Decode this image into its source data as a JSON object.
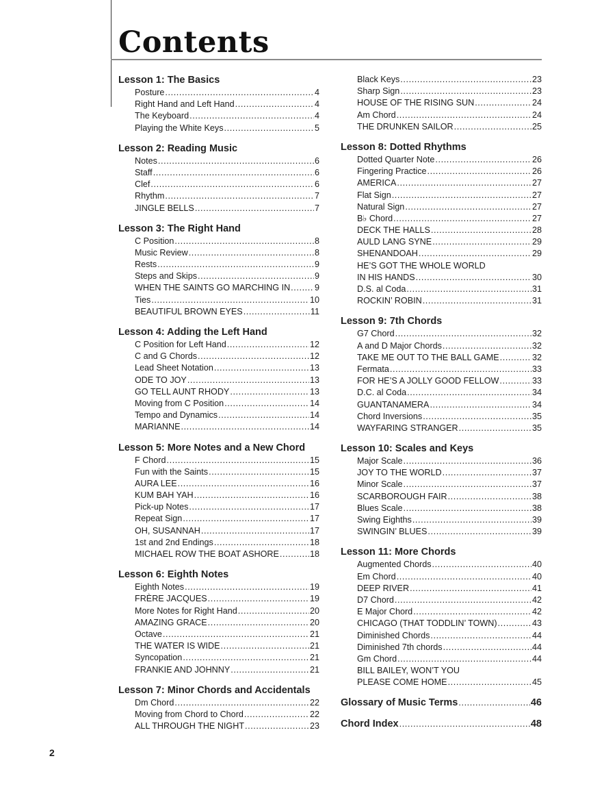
{
  "title": "Contents",
  "folio": "2",
  "columns": [
    [
      {
        "heading": "Lesson 1: The Basics",
        "items": [
          {
            "title": "Posture",
            "page": "4"
          },
          {
            "title": "Right Hand and Left Hand",
            "page": "4"
          },
          {
            "title": "The Keyboard",
            "page": "4"
          },
          {
            "title": "Playing the White Keys",
            "page": "5"
          }
        ]
      },
      {
        "heading": "Lesson 2: Reading Music",
        "items": [
          {
            "title": "Notes",
            "page": "6"
          },
          {
            "title": "Staff",
            "page": "6"
          },
          {
            "title": "Clef",
            "page": "6"
          },
          {
            "title": "Rhythm",
            "page": "7"
          },
          {
            "title": "JINGLE BELLS",
            "page": "7"
          }
        ]
      },
      {
        "heading": "Lesson 3: The Right Hand",
        "items": [
          {
            "title": "C Position",
            "page": "8"
          },
          {
            "title": "Music Review",
            "page": "8"
          },
          {
            "title": "Rests",
            "page": "9"
          },
          {
            "title": "Steps and Skips",
            "page": "9"
          },
          {
            "title": "WHEN THE SAINTS GO MARCHING IN",
            "page": "9"
          },
          {
            "title": "Ties",
            "page": "10"
          },
          {
            "title": "BEAUTIFUL BROWN EYES",
            "page": "11"
          }
        ]
      },
      {
        "heading": "Lesson 4: Adding the Left Hand",
        "items": [
          {
            "title": "C Position for Left Hand",
            "page": "12"
          },
          {
            "title": "C and G Chords",
            "page": "12"
          },
          {
            "title": "Lead Sheet Notation",
            "page": "13"
          },
          {
            "title": "ODE TO JOY",
            "page": "13"
          },
          {
            "title": "GO TELL AUNT RHODY",
            "page": "13"
          },
          {
            "title": "Moving from C Position",
            "page": "14"
          },
          {
            "title": "Tempo and Dynamics",
            "page": "14"
          },
          {
            "title": "MARIANNE",
            "page": "14"
          }
        ]
      },
      {
        "heading": "Lesson 5: More Notes and a New Chord",
        "items": [
          {
            "title": "F Chord",
            "page": "15"
          },
          {
            "title": "Fun with the Saints",
            "page": "15"
          },
          {
            "title": "AURA LEE",
            "page": "16"
          },
          {
            "title": "KUM BAH YAH",
            "page": "16"
          },
          {
            "title": "Pick-up Notes",
            "page": "17"
          },
          {
            "title": "Repeat Sign",
            "page": "17"
          },
          {
            "title": "OH, SUSANNAH",
            "page": "17"
          },
          {
            "title": "1st and 2nd Endings",
            "page": "18"
          },
          {
            "title": "MICHAEL ROW THE BOAT ASHORE",
            "page": "18"
          }
        ]
      },
      {
        "heading": "Lesson 6: Eighth Notes",
        "items": [
          {
            "title": "Eighth Notes",
            "page": "19"
          },
          {
            "title": "FRÈRE JACQUES",
            "page": "19"
          },
          {
            "title": "More Notes for Right Hand",
            "page": "20"
          },
          {
            "title": "AMAZING GRACE",
            "page": "20"
          },
          {
            "title": "Octave",
            "page": "21"
          },
          {
            "title": "THE WATER IS WIDE",
            "page": "21"
          },
          {
            "title": "Syncopation",
            "page": "21"
          },
          {
            "title": "FRANKIE AND JOHNNY",
            "page": "21"
          }
        ]
      },
      {
        "heading": "Lesson 7: Minor Chords and Accidentals",
        "items": [
          {
            "title": "Dm Chord",
            "page": "22"
          },
          {
            "title": "Moving from Chord to Chord",
            "page": "22"
          },
          {
            "title": "ALL THROUGH THE NIGHT",
            "page": "23"
          }
        ]
      }
    ],
    [
      {
        "heading": "",
        "items": [
          {
            "title": "Black Keys",
            "page": "23"
          },
          {
            "title": "Sharp Sign",
            "page": "23"
          },
          {
            "title": "HOUSE OF THE RISING SUN",
            "page": "24"
          },
          {
            "title": "Am Chord",
            "page": "24"
          },
          {
            "title": "THE DRUNKEN SAILOR",
            "page": "25"
          }
        ]
      },
      {
        "heading": "Lesson 8: Dotted Rhythms",
        "items": [
          {
            "title": "Dotted Quarter Note",
            "page": "26"
          },
          {
            "title": "Fingering Practice",
            "page": "26"
          },
          {
            "title": "AMERICA",
            "page": "27"
          },
          {
            "title": "Flat Sign",
            "page": "27"
          },
          {
            "title": "Natural Sign",
            "page": "27"
          },
          {
            "title": "B♭ Chord",
            "page": "27"
          },
          {
            "title": "DECK THE HALLS",
            "page": "28"
          },
          {
            "title": "AULD LANG SYNE",
            "page": "29"
          },
          {
            "title": "SHENANDOAH",
            "page": "29"
          },
          {
            "pre": "HE’S GOT THE WHOLE WORLD",
            "title": "IN HIS HANDS",
            "page": "30"
          },
          {
            "title": "D.S. al Coda",
            "page": "31"
          },
          {
            "title": "ROCKIN’ ROBIN",
            "page": "31"
          }
        ]
      },
      {
        "heading": "Lesson 9: 7th Chords",
        "items": [
          {
            "title": "G7 Chord",
            "page": "32"
          },
          {
            "title": "A and D Major Chords",
            "page": "32"
          },
          {
            "title": "TAKE ME OUT TO THE BALL GAME",
            "page": "32"
          },
          {
            "title": "Fermata",
            "page": "33"
          },
          {
            "title": "FOR HE’S A JOLLY GOOD FELLOW",
            "page": "33"
          },
          {
            "title": "D.C. al Coda",
            "page": "34"
          },
          {
            "title": "GUANTANAMERA",
            "page": "34"
          },
          {
            "title": "Chord Inversions",
            "page": "35"
          },
          {
            "title": "WAYFARING STRANGER",
            "page": "35"
          }
        ]
      },
      {
        "heading": "Lesson 10: Scales and Keys",
        "items": [
          {
            "title": "Major Scale",
            "page": "36"
          },
          {
            "title": "JOY TO THE WORLD",
            "page": "37"
          },
          {
            "title": "Minor Scale",
            "page": "37"
          },
          {
            "title": "SCARBOROUGH FAIR",
            "page": "38"
          },
          {
            "title": "Blues Scale",
            "page": "38"
          },
          {
            "title": "Swing Eighths",
            "page": "39"
          },
          {
            "title": "SWINGIN’ BLUES",
            "page": "39"
          }
        ]
      },
      {
        "heading": "Lesson 11: More Chords",
        "items": [
          {
            "title": "Augmented Chords",
            "page": "40"
          },
          {
            "title": "Em Chord",
            "page": "40"
          },
          {
            "title": "DEEP RIVER",
            "page": "41"
          },
          {
            "title": "D7 Chord",
            "page": "42"
          },
          {
            "title": "E Major Chord",
            "page": "42"
          },
          {
            "title": "CHICAGO (THAT TODDLIN’ TOWN)",
            "page": "43"
          },
          {
            "title": "Diminished Chords",
            "page": "44"
          },
          {
            "title": "Diminished 7th chords",
            "page": "44"
          },
          {
            "title": "Gm Chord",
            "page": "44"
          },
          {
            "pre": "BILL BAILEY, WON’T YOU",
            "title": "PLEASE COME HOME",
            "page": "45"
          }
        ]
      },
      {
        "heading": "Glossary of Music Terms",
        "page": "46",
        "items": []
      },
      {
        "heading": "Chord Index",
        "page": "48",
        "items": []
      }
    ]
  ]
}
